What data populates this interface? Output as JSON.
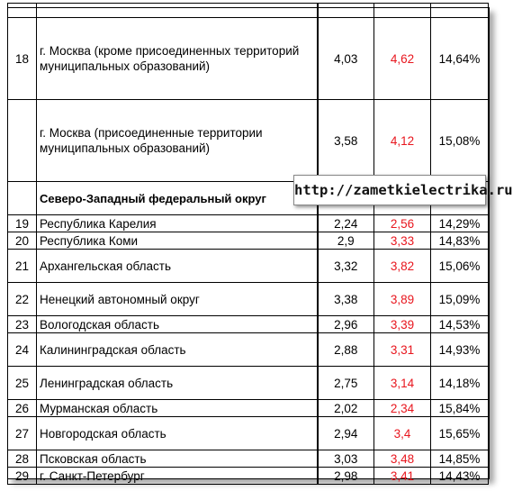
{
  "watermark": "http://zametkielectrika.ru",
  "rows": [
    {
      "kind": "blank"
    },
    {
      "kind": "data",
      "num": "18",
      "name": "г. Москва (кроме присоединенных территорий муниципальных образований)",
      "v1": "4,03",
      "v2": "4,62",
      "pct": "14,64%"
    },
    {
      "kind": "data",
      "num": "",
      "name": "г. Москва (присоединенные территории муниципальных образований)",
      "v1": "3,58",
      "v2": "4,12",
      "pct": "15,08%"
    },
    {
      "kind": "region",
      "name": "Северо-Западный федеральный округ"
    },
    {
      "kind": "data",
      "num": "19",
      "name": "Республика Карелия",
      "v1": "2,24",
      "v2": "2,56",
      "pct": "14,29%"
    },
    {
      "kind": "data",
      "num": "20",
      "name": "Республика Коми",
      "v1": "2,9",
      "v2": "3,33",
      "pct": "14,83%"
    },
    {
      "kind": "data",
      "num": "21",
      "name": "Архангельская область",
      "v1": "3,32",
      "v2": "3,82",
      "pct": "15,06%"
    },
    {
      "kind": "data",
      "num": "22",
      "name": "Ненецкий автономный округ",
      "v1": "3,38",
      "v2": "3,89",
      "pct": "15,09%"
    },
    {
      "kind": "data",
      "num": "23",
      "name": "Вологодская область",
      "v1": "2,96",
      "v2": "3,39",
      "pct": "14,53%"
    },
    {
      "kind": "data",
      "num": "24",
      "name": "Калининградская область",
      "v1": "2,88",
      "v2": "3,31",
      "pct": "14,93%"
    },
    {
      "kind": "data",
      "num": "25",
      "name": "Ленинградская область",
      "v1": "2,75",
      "v2": "3,14",
      "pct": "14,18%"
    },
    {
      "kind": "data",
      "num": "26",
      "name": "Мурманская область",
      "v1": "2,02",
      "v2": "2,34",
      "pct": "15,84%"
    },
    {
      "kind": "data",
      "num": "27",
      "name": "Новгородская область",
      "v1": "2,94",
      "v2": "3,4",
      "pct": "15,65%"
    },
    {
      "kind": "data",
      "num": "28",
      "name": "Псковская область",
      "v1": "3,03",
      "v2": "3,48",
      "pct": "14,85%"
    },
    {
      "kind": "data",
      "num": "29",
      "name": "г. Санкт-Петербург",
      "v1": "2,98",
      "v2": "3,41",
      "pct": "14,43%"
    }
  ],
  "colors": {
    "highlight_value": "#e8161e"
  }
}
